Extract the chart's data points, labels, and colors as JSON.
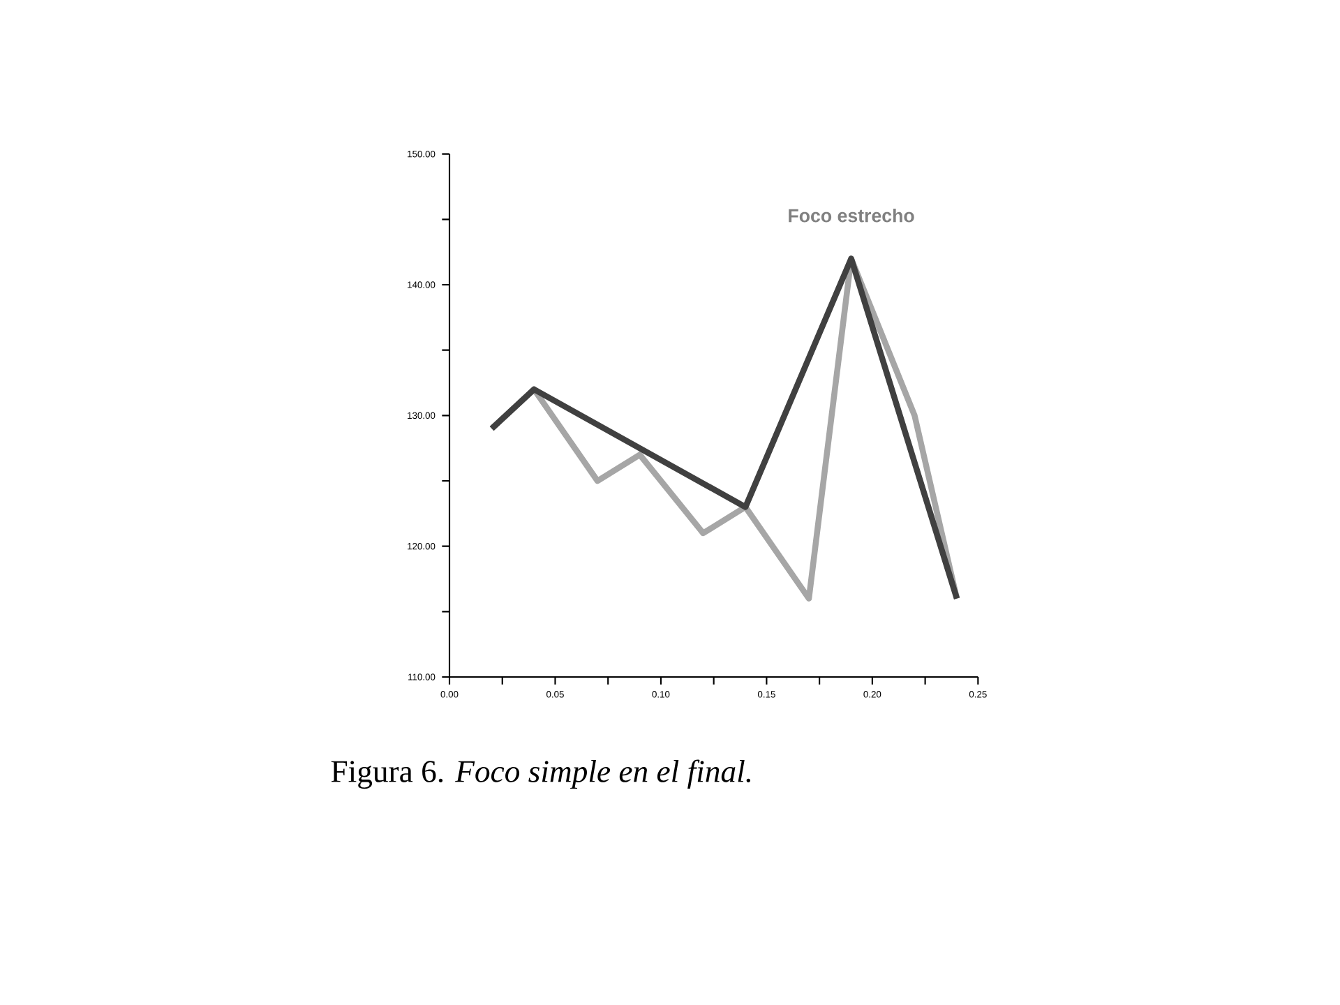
{
  "chart_data": {
    "type": "line",
    "x": [
      0.02,
      0.04,
      0.07,
      0.09,
      0.12,
      0.14,
      0.17,
      0.19,
      0.22,
      0.24
    ],
    "series": [
      {
        "color": "#a6a6a6",
        "values": [
          129,
          132,
          125,
          127,
          121,
          123,
          116,
          142,
          130,
          116
        ]
      },
      {
        "color": "#404040",
        "x": [
          0.02,
          0.04,
          0.14,
          0.19,
          0.24
        ],
        "values": [
          129,
          132,
          123,
          142,
          116
        ]
      }
    ],
    "xlim": [
      0,
      0.25
    ],
    "xticks": [
      {
        "value": 0,
        "label": "0.00"
      },
      {
        "value": 0.025,
        "label": null
      },
      {
        "value": 0.05,
        "label": "0.05"
      },
      {
        "value": 0.075,
        "label": null
      },
      {
        "value": 0.1,
        "label": "0.10"
      },
      {
        "value": 0.125,
        "label": null
      },
      {
        "value": 0.15,
        "label": "0.15"
      },
      {
        "value": 0.175,
        "label": null
      },
      {
        "value": 0.2,
        "label": "0.20"
      },
      {
        "value": 0.225,
        "label": null
      },
      {
        "value": 0.25,
        "label": "0.25"
      }
    ],
    "ylim": [
      110,
      150
    ],
    "yticks": [
      {
        "value": 110,
        "label": "110.00"
      },
      {
        "value": 115,
        "label": null
      },
      {
        "value": 120,
        "label": "120.00"
      },
      {
        "value": 125,
        "label": null
      },
      {
        "value": 130,
        "label": "130.00"
      },
      {
        "value": 135,
        "label": null
      },
      {
        "value": 140,
        "label": "140.00"
      },
      {
        "value": 145,
        "label": null
      },
      {
        "value": 150,
        "label": "150.00"
      }
    ],
    "annotations": [
      {
        "text": "Foco estrecho",
        "x": 0.19,
        "y": 142
      },
      "Figura 6. *Foco simple en el final.*"
    ]
  }
}
